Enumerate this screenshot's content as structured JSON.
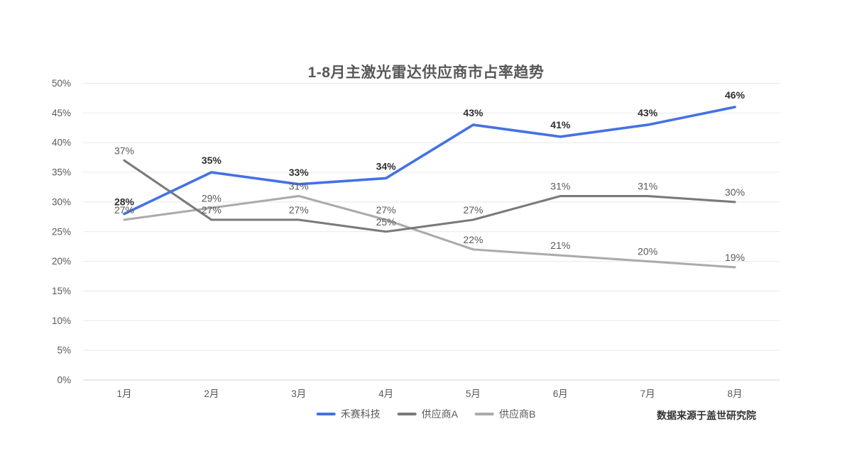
{
  "title": "1-8月主激光雷达供应商市占率趋势",
  "source_note": "数据来源于盖世研究院",
  "colors": {
    "hesai_blue": "#4472e4",
    "supplier_a_gray": "#7a7a7a",
    "supplier_b_gray": "#ababab",
    "gridline": "#e8e8e8",
    "baseline": "#d4d4d4",
    "axis_text": "#595959",
    "bold_label_text": "#2f2f2f",
    "title_text": "#58585a"
  },
  "chart_data": {
    "type": "line",
    "title": "1-8月主激光雷达供应商市占率趋势",
    "categories": [
      "1月",
      "2月",
      "3月",
      "4月",
      "5月",
      "6月",
      "7月",
      "8月"
    ],
    "series": [
      {
        "name": "禾赛科技",
        "color": "#4472e4",
        "values": [
          28,
          35,
          33,
          34,
          43,
          41,
          43,
          46
        ],
        "label_bold": true
      },
      {
        "name": "供应商A",
        "color": "#7a7a7a",
        "values": [
          37,
          27,
          27,
          25,
          27,
          31,
          31,
          30
        ],
        "label_bold": false
      },
      {
        "name": "供应商B",
        "color": "#ababab",
        "values": [
          27,
          29,
          31,
          27,
          22,
          21,
          20,
          19
        ],
        "label_bold": false
      }
    ],
    "xlabel": "",
    "ylabel": "",
    "ylim": [
      0,
      50
    ],
    "ytick_step": 5,
    "ytick_labels": [
      "0%",
      "5%",
      "10%",
      "15%",
      "20%",
      "25%",
      "30%",
      "35%",
      "40%",
      "45%",
      "50%"
    ],
    "data_label_suffix": "%",
    "grid": true,
    "legend_position": "bottom",
    "annotations": [
      "数据来源于盖世研究院"
    ]
  }
}
